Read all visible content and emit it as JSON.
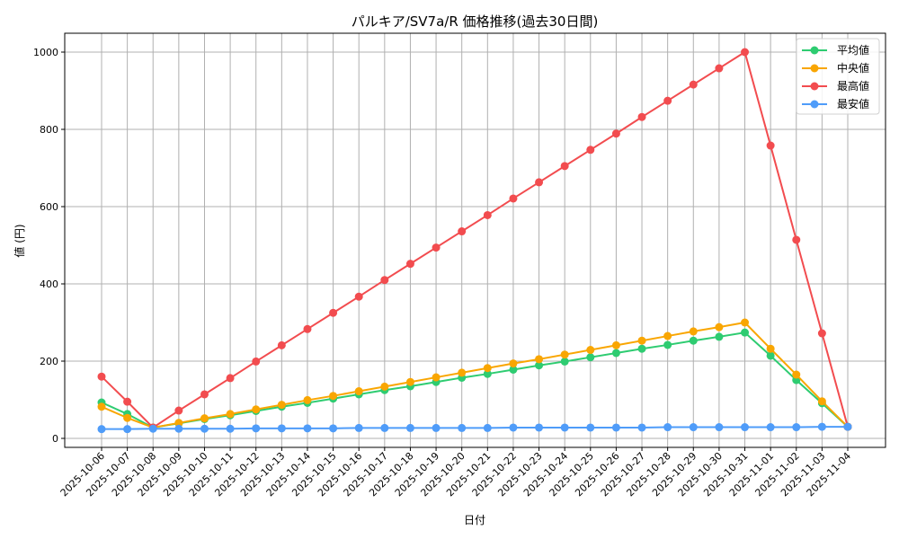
{
  "chart_data": {
    "type": "line",
    "title": "パルキア/SV7a/R 価格推移(過去30日間)",
    "xlabel": "日付",
    "ylabel": "値 (円)",
    "ylim": [
      -25,
      1050
    ],
    "yticks": [
      0,
      200,
      400,
      600,
      800,
      1000
    ],
    "grid": true,
    "legend_position": "upper right",
    "categories": [
      "2025-10-06",
      "2025-10-07",
      "2025-10-08",
      "2025-10-09",
      "2025-10-10",
      "2025-10-11",
      "2025-10-12",
      "2025-10-13",
      "2025-10-14",
      "2025-10-15",
      "2025-10-16",
      "2025-10-17",
      "2025-10-18",
      "2025-10-19",
      "2025-10-20",
      "2025-10-21",
      "2025-10-22",
      "2025-10-23",
      "2025-10-24",
      "2025-10-25",
      "2025-10-26",
      "2025-10-27",
      "2025-10-28",
      "2025-10-29",
      "2025-10-30",
      "2025-10-31",
      "2025-11-01",
      "2025-11-02",
      "2025-11-03",
      "2025-11-04"
    ],
    "series": [
      {
        "name": "平均値",
        "color": "#2ecc71",
        "values": [
          93,
          63,
          28,
          39,
          50,
          60,
          71,
          82,
          92,
          103,
          114,
          125,
          135,
          146,
          157,
          167,
          178,
          189,
          199,
          210,
          221,
          232,
          242,
          253,
          263,
          274,
          214,
          151,
          91,
          30
        ]
      },
      {
        "name": "中央値",
        "color": "#f9a602",
        "values": [
          82,
          53,
          28,
          40,
          52,
          63,
          75,
          87,
          99,
          110,
          122,
          134,
          146,
          158,
          170,
          182,
          194,
          205,
          217,
          229,
          241,
          253,
          265,
          277,
          288,
          300,
          232,
          165,
          96,
          30
        ]
      },
      {
        "name": "最高値",
        "color": "#f24c4f",
        "values": [
          160,
          95,
          28,
          72,
          114,
          156,
          199,
          241,
          283,
          325,
          367,
          410,
          452,
          494,
          536,
          578,
          621,
          663,
          705,
          747,
          789,
          832,
          874,
          916,
          958,
          1000,
          758,
          514,
          272,
          30
        ]
      },
      {
        "name": "最安値",
        "color": "#4f9cf9",
        "values": [
          24,
          24,
          25,
          25,
          25,
          25,
          26,
          26,
          26,
          26,
          27,
          27,
          27,
          27,
          27,
          27,
          28,
          28,
          28,
          28,
          28,
          28,
          29,
          29,
          29,
          29,
          29,
          29,
          30,
          30
        ]
      }
    ]
  }
}
